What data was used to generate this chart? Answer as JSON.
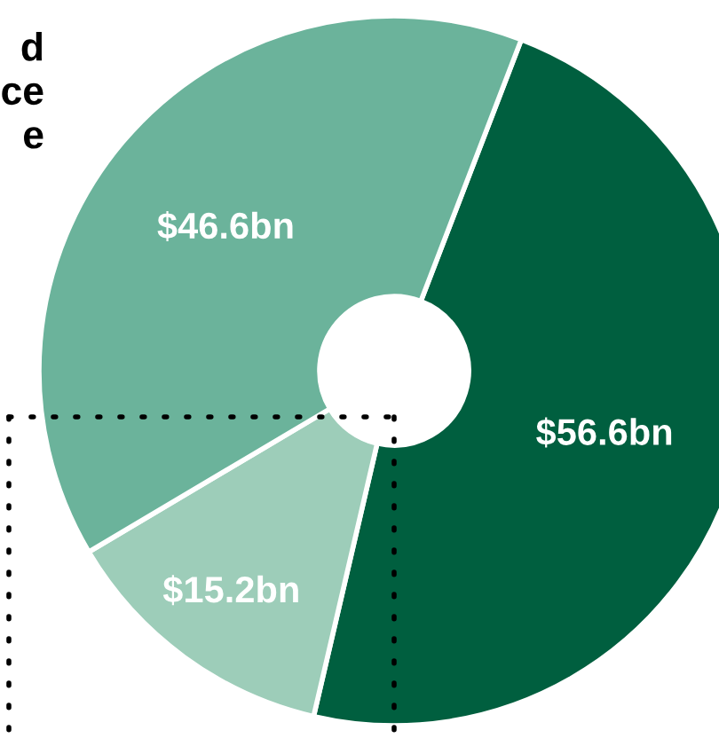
{
  "chart_data": {
    "type": "donut",
    "title": "d\nce\ne",
    "categories": [
      null,
      null,
      null
    ],
    "values": [
      56.6,
      15.2,
      46.6
    ],
    "colors": [
      "#005f3f",
      "#9dcdb9",
      "#6bb39b"
    ],
    "value_labels": [
      "$56.6bn",
      "$15.2bn",
      "$46.6bn"
    ],
    "legend": false
  }
}
